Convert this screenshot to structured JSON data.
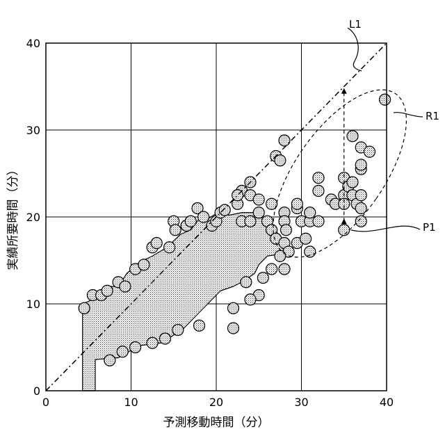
{
  "chart_data": {
    "type": "scatter",
    "xlabel": "予測移動時間（分）",
    "ylabel": "実績所要時間（分）",
    "xlim": [
      0,
      40
    ],
    "ylim": [
      0,
      40
    ],
    "x_ticks": [
      "0",
      "10",
      "20",
      "30",
      "40"
    ],
    "y_ticks": [
      "0",
      "10",
      "20",
      "30",
      "40"
    ],
    "grid": true,
    "reference_line": {
      "label": "L1",
      "from": [
        0,
        0
      ],
      "to": [
        40,
        40
      ],
      "style": "dash-dot"
    },
    "region": {
      "label": "R1",
      "center": [
        34.5,
        25
      ],
      "rx": 5.2,
      "ry": 11.2,
      "rotation_deg": 35,
      "style": "dashed"
    },
    "highlight_point": {
      "label": "P1",
      "x": 35,
      "y": 18.5
    },
    "arrow": {
      "x": 35,
      "y_from": 19.5,
      "y_to": 34.5
    },
    "dense_region": [
      [
        4.3,
        0
      ],
      [
        5.8,
        0
      ],
      [
        5.8,
        3.6
      ],
      [
        8.5,
        3.8
      ],
      [
        11,
        5.2
      ],
      [
        13.5,
        5.5
      ],
      [
        16,
        7
      ],
      [
        17.5,
        8.5
      ],
      [
        19,
        10
      ],
      [
        20.5,
        11.5
      ],
      [
        22,
        12
      ],
      [
        23,
        12.5
      ],
      [
        24.5,
        13.5
      ],
      [
        25,
        14.5
      ],
      [
        26,
        15.5
      ],
      [
        28,
        15.8
      ],
      [
        27.5,
        17.5
      ],
      [
        27,
        18.5
      ],
      [
        26,
        18.8
      ],
      [
        25,
        20.5
      ],
      [
        23,
        20.5
      ],
      [
        21.5,
        20.2
      ],
      [
        20.2,
        20.5
      ],
      [
        19,
        19.8
      ],
      [
        18,
        19.8
      ],
      [
        17,
        18.5
      ],
      [
        15.8,
        18
      ],
      [
        14.2,
        16.5
      ],
      [
        12.5,
        15.5
      ],
      [
        11,
        14.8
      ],
      [
        9.5,
        13.5
      ],
      [
        8.5,
        12
      ],
      [
        7.5,
        12
      ],
      [
        6.5,
        11
      ],
      [
        5.5,
        10.5
      ],
      [
        4.3,
        10
      ]
    ],
    "series": [
      {
        "points": [
          [
            4.5,
            9.5
          ],
          [
            5.5,
            11
          ],
          [
            6.5,
            11
          ],
          [
            7.2,
            11.5
          ],
          [
            8.5,
            12.5
          ],
          [
            9.3,
            12
          ],
          [
            10.5,
            14
          ],
          [
            11.5,
            14.5
          ],
          [
            12.5,
            16.5
          ],
          [
            13,
            17
          ],
          [
            14.5,
            16.5
          ],
          [
            15,
            19.5
          ],
          [
            15.2,
            18.5
          ],
          [
            16.5,
            19
          ],
          [
            17,
            19.5
          ],
          [
            17.8,
            21
          ],
          [
            18.5,
            20
          ],
          [
            19.5,
            19
          ],
          [
            20,
            19.5
          ],
          [
            20.5,
            20.5
          ],
          [
            21,
            20.8
          ],
          [
            22.5,
            21.5
          ],
          [
            23,
            19.5
          ],
          [
            24,
            19.5
          ],
          [
            25,
            20.5
          ],
          [
            26,
            19.5
          ],
          [
            26.5,
            18.5
          ],
          [
            27,
            17.5
          ],
          [
            28,
            17
          ],
          [
            28.5,
            16
          ],
          [
            28,
            14
          ],
          [
            27.5,
            15.5
          ],
          [
            26.5,
            14
          ],
          [
            25.5,
            13
          ],
          [
            25,
            11
          ],
          [
            24,
            10.5
          ],
          [
            23.5,
            12.5
          ],
          [
            22,
            9.5
          ],
          [
            22,
            7.2
          ],
          [
            18,
            7.5
          ],
          [
            15.5,
            7
          ],
          [
            14,
            6
          ],
          [
            12.5,
            5.5
          ],
          [
            10.5,
            5
          ],
          [
            9,
            4.5
          ],
          [
            7.5,
            3.5
          ],
          [
            23,
            23
          ],
          [
            24,
            24
          ],
          [
            24,
            22.5
          ],
          [
            25,
            22
          ],
          [
            26.5,
            21.5
          ],
          [
            28,
            20.5
          ],
          [
            22.5,
            22.5
          ],
          [
            27,
            27
          ],
          [
            27.5,
            26.5
          ],
          [
            28,
            28.8
          ],
          [
            28,
            19.5
          ],
          [
            28.2,
            18.5
          ],
          [
            29.5,
            21
          ],
          [
            29.5,
            17
          ],
          [
            30,
            19.5
          ],
          [
            31,
            19.5
          ],
          [
            31,
            16
          ],
          [
            31,
            20.5
          ],
          [
            32,
            24.5
          ],
          [
            32,
            23
          ],
          [
            32,
            19.5
          ],
          [
            33.5,
            22
          ],
          [
            34,
            21.5
          ],
          [
            35,
            24.5
          ],
          [
            35,
            22.5
          ],
          [
            35,
            21.5
          ],
          [
            35.5,
            23.5
          ],
          [
            36,
            24
          ],
          [
            36,
            29.3
          ],
          [
            36,
            22.5
          ],
          [
            36.5,
            21.5
          ],
          [
            37,
            21
          ],
          [
            37,
            22.5
          ],
          [
            37,
            25.5
          ],
          [
            37,
            26
          ],
          [
            37,
            28
          ],
          [
            38,
            27.5
          ],
          [
            37,
            19.5
          ],
          [
            35,
            18.5
          ],
          [
            39.8,
            33.5
          ],
          [
            29.5,
            21.5
          ],
          [
            30.5,
            17.5
          ]
        ]
      }
    ]
  }
}
